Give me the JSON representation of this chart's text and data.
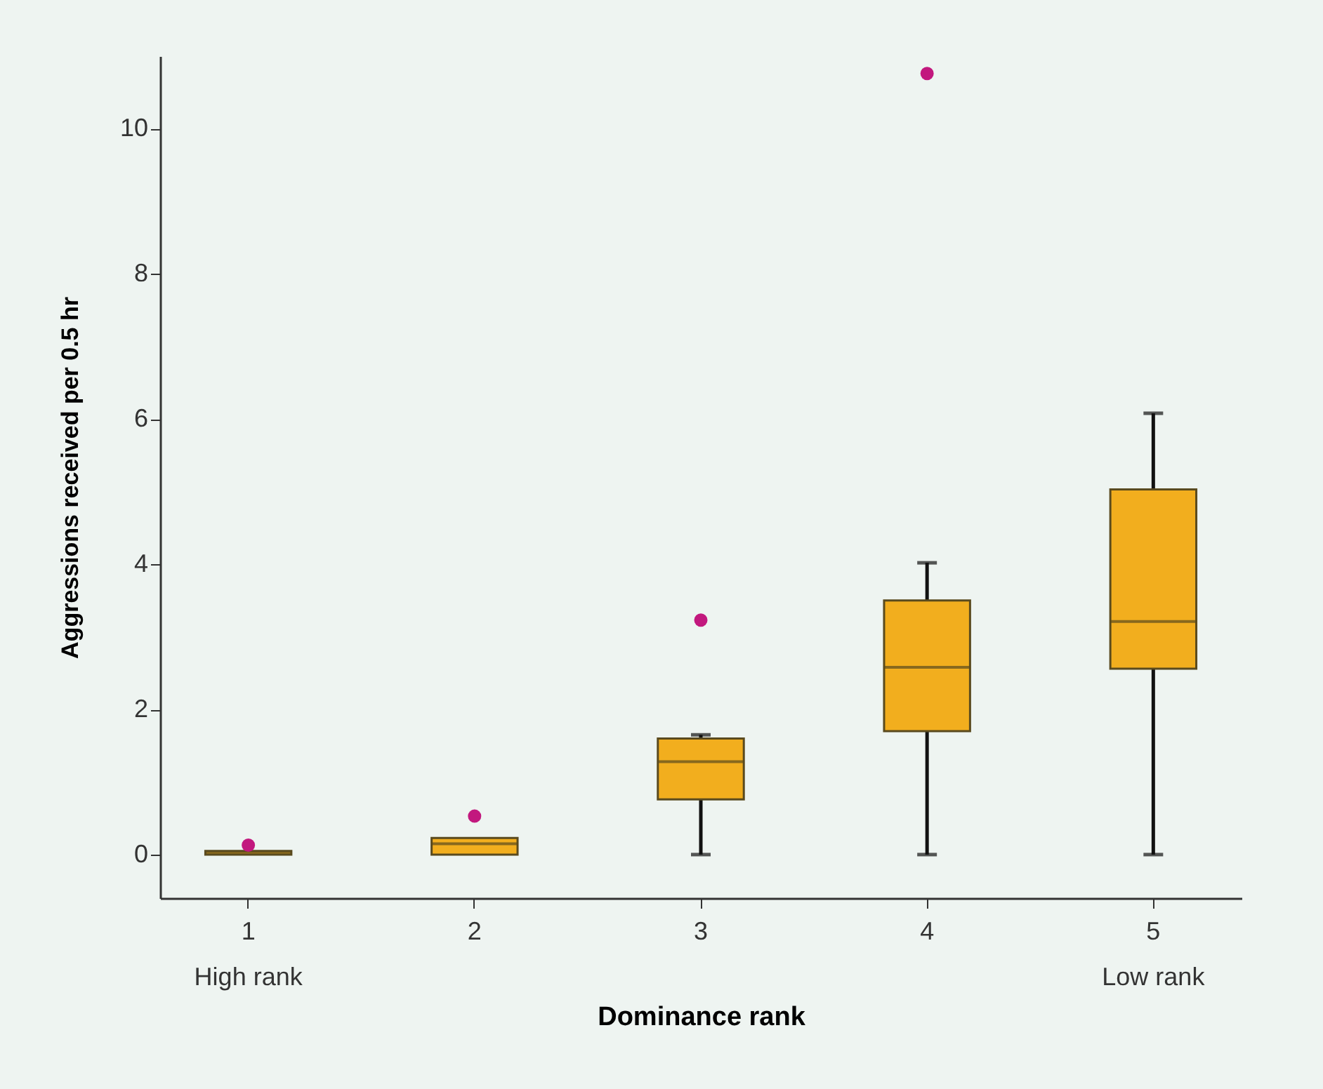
{
  "chart_data": {
    "type": "box",
    "xlabel": "Dominance rank",
    "ylabel": "Aggressions received per 0.5 hr",
    "categories": [
      "1",
      "2",
      "3",
      "4",
      "5"
    ],
    "ylim": [
      -0.6,
      11
    ],
    "yticks": [
      0,
      2,
      4,
      6,
      8,
      10
    ],
    "marker": "circle",
    "annotations": [
      "High rank",
      "Low rank"
    ],
    "series": [
      {
        "color": "#f2ae1e",
        "boxes": [
          {
            "low": 0,
            "q1": 0,
            "median": 0.03,
            "q3": 0.05,
            "high": 0.05
          },
          {
            "low": 0,
            "q1": 0,
            "median": 0.15,
            "q3": 0.23,
            "high": 0.23
          },
          {
            "low": 0,
            "q1": 0.76,
            "median": 1.28,
            "q3": 1.6,
            "high": 1.65
          },
          {
            "low": 0,
            "q1": 1.7,
            "median": 2.58,
            "q3": 3.5,
            "high": 4.02
          },
          {
            "low": 0,
            "q1": 2.56,
            "median": 3.21,
            "q3": 5.03,
            "high": 6.08
          }
        ]
      },
      {
        "type": "scatter",
        "color": "#c2187e",
        "x": [
          "1",
          "2",
          "3",
          "4"
        ],
        "values": [
          0.13,
          0.53,
          3.23,
          10.76
        ]
      }
    ]
  }
}
